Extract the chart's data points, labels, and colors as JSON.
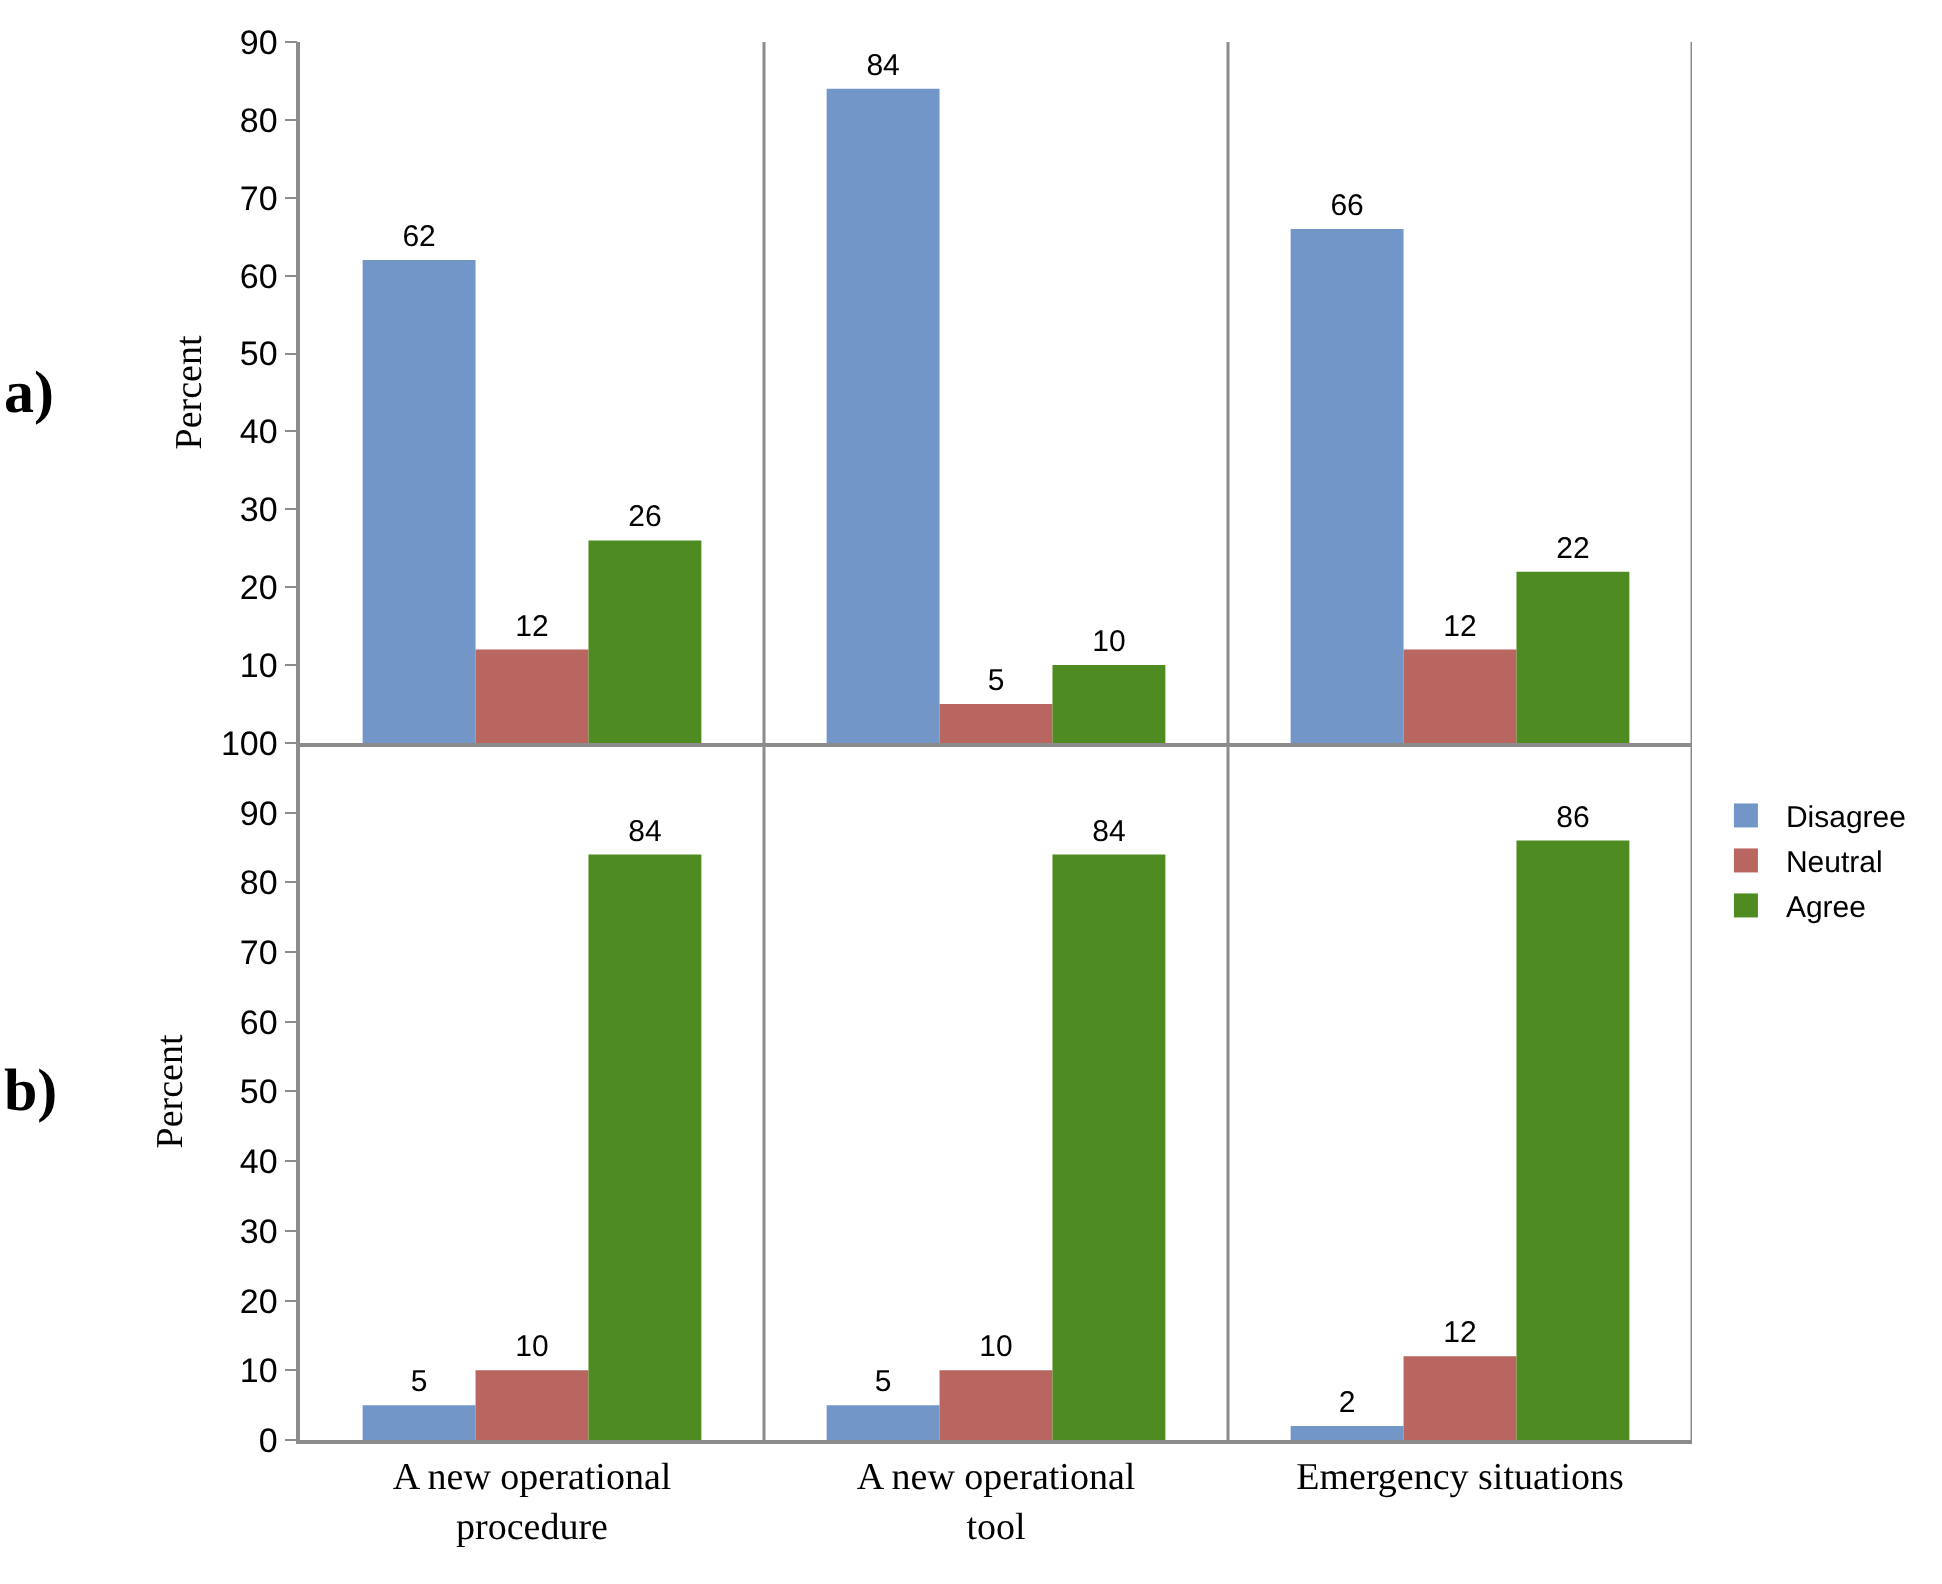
{
  "chart_data": [
    {
      "type": "bar",
      "ylabel": "Percent",
      "annotations": [
        "a)"
      ],
      "categories": [
        null,
        null,
        null
      ],
      "series": [
        {
          "name": "Disagree",
          "color": "#7396c8",
          "values": [
            62,
            84,
            66
          ]
        },
        {
          "name": "Neutral",
          "color": "#b96560",
          "values": [
            12,
            5,
            12
          ]
        },
        {
          "name": "Agree",
          "color": "#4e8c22",
          "values": [
            26,
            10,
            22
          ]
        }
      ],
      "ylim": [
        0,
        90
      ],
      "yticks": [
        {
          "value": 0,
          "label": null
        },
        10,
        20,
        30,
        40,
        50,
        60,
        70,
        80,
        90
      ],
      "tick_labels": "y",
      "grid": "x",
      "legend": "right",
      "data_labels": true
    },
    {
      "type": "bar",
      "ylabel": "Percent",
      "annotations": [
        "b)"
      ],
      "categories": [
        "A new operational procedure",
        "A new operational tool",
        "Emergency situations"
      ],
      "series": [
        {
          "name": "Disagree",
          "color": "#7396c8",
          "values": [
            5,
            5,
            2
          ]
        },
        {
          "name": "Neutral",
          "color": "#b96560",
          "values": [
            10,
            10,
            12
          ]
        },
        {
          "name": "Agree",
          "color": "#4e8c22",
          "values": [
            84,
            84,
            86
          ]
        }
      ],
      "ylim": [
        0,
        100
      ],
      "yticks": [
        0,
        10,
        20,
        30,
        40,
        50,
        60,
        70,
        80,
        90,
        100
      ],
      "grid": "x",
      "legend": "right",
      "data_labels": true
    }
  ]
}
